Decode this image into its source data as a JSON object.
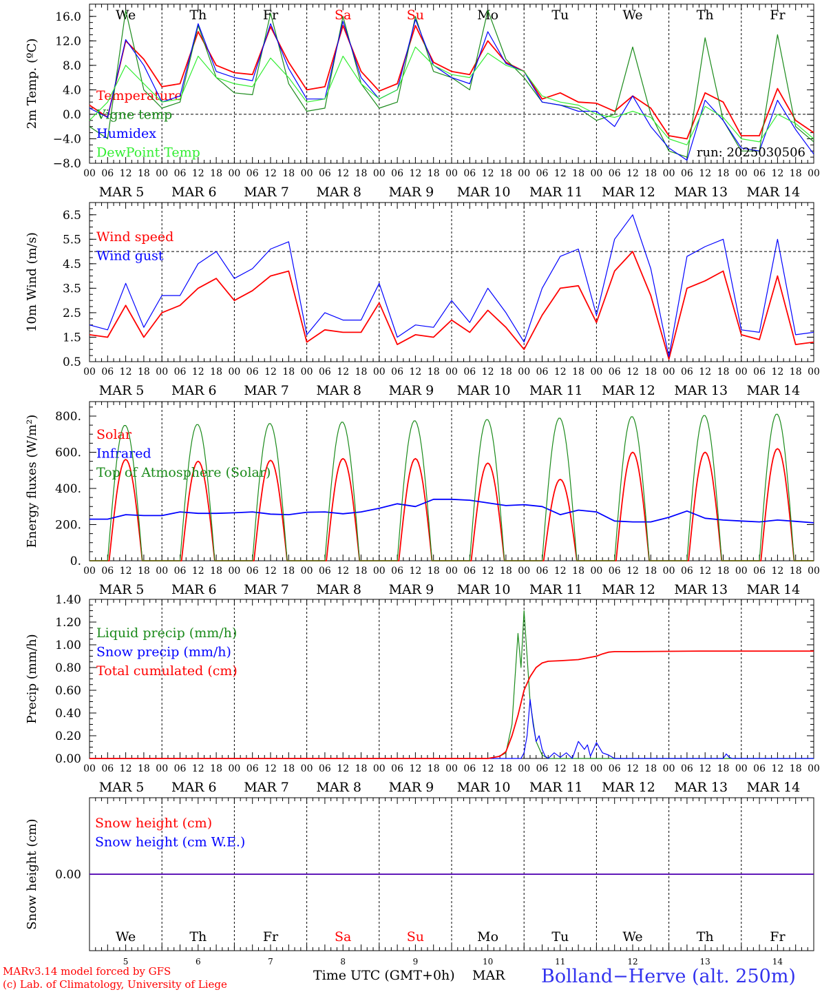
{
  "colors": {
    "red": "#ff0000",
    "green": "#1a8a1a",
    "blue": "#0000ff",
    "lime": "#33ee33",
    "black": "#000000"
  },
  "x_axis": {
    "days": [
      "MAR 5",
      "MAR 6",
      "MAR 7",
      "MAR 8",
      "MAR 9",
      "MAR 10",
      "MAR 11",
      "MAR 12",
      "MAR 13",
      "MAR 14"
    ],
    "weekdays": [
      "We",
      "Th",
      "Fr",
      "Sa",
      "Su",
      "Mo",
      "Tu",
      "We",
      "Th",
      "Fr"
    ],
    "weekend_days": [
      3,
      4
    ],
    "hour_ticks": [
      "00",
      "06",
      "12",
      "18"
    ],
    "final_tick": "00",
    "bottom_day_numbers": [
      "5",
      "6",
      "7",
      "8",
      "9",
      "10",
      "11",
      "12",
      "13",
      "14"
    ],
    "label": "Time UTC (GMT+0h)",
    "month": "MAR"
  },
  "footer": {
    "model": "MARv3.14 model forced by GFS",
    "lab": "(c) Lab. of Climatology, University of Liege",
    "station": "Bolland−Herve (alt. 250m)"
  },
  "chart_data": [
    {
      "type": "line",
      "ylabel": "2m Temp. (ºC)",
      "ylim": [
        -8,
        18
      ],
      "yticks": [
        "−8.0",
        "−4.0",
        "0.0",
        "4.0",
        "8.0",
        "12.0",
        "16.0"
      ],
      "ytick_values": [
        -8,
        -4,
        0,
        4,
        8,
        12,
        16
      ],
      "ref_line": 0,
      "annotation": "run: 2025030506",
      "hours": [
        0,
        6,
        12,
        18,
        24,
        30,
        36,
        42,
        48,
        54,
        60,
        66,
        72,
        78,
        84,
        90,
        96,
        102,
        108,
        114,
        120,
        126,
        132,
        138,
        144,
        150,
        156,
        162,
        168,
        174,
        180,
        186,
        192,
        198,
        204,
        210,
        216,
        222,
        228,
        234,
        240
      ],
      "series": [
        {
          "name": "Temperature",
          "color": "red",
          "values": [
            1.5,
            -0.5,
            12,
            9,
            4.5,
            5,
            13.5,
            8,
            6.8,
            6.5,
            14.3,
            8.5,
            4,
            4.5,
            14.5,
            7,
            3.8,
            5,
            14.5,
            8.5,
            7,
            6.5,
            12,
            8.5,
            7,
            2.5,
            3.5,
            2,
            1.8,
            0.5,
            3,
            1,
            -3.5,
            -4,
            3.5,
            2,
            -3.5,
            -3.5,
            4.2,
            -1,
            -3
          ]
        },
        {
          "name": "Vigne temp",
          "color": "green",
          "values": [
            -2,
            -4,
            17,
            4,
            1,
            2,
            14.5,
            6,
            3.5,
            3.2,
            16.5,
            5,
            0.5,
            1,
            16,
            5,
            1,
            2,
            16,
            7,
            6,
            4,
            17,
            9,
            6,
            2,
            1.5,
            1,
            -1,
            0,
            11,
            0,
            -6,
            -7,
            12.5,
            -1,
            -6,
            -6,
            13,
            -2,
            -4.5
          ]
        },
        {
          "name": "Humidex",
          "color": "blue",
          "values": [
            1,
            -0.5,
            12.2,
            8,
            2,
            3,
            14.8,
            7,
            6,
            5.5,
            14.8,
            7.5,
            2.5,
            2.5,
            15.2,
            6,
            2.5,
            4,
            15.5,
            8,
            6,
            5,
            13.5,
            8.3,
            7,
            2,
            1.5,
            0.5,
            0.5,
            -2,
            3,
            -2,
            -5.5,
            -7.5,
            2.3,
            -1,
            -5.5,
            -6,
            2.3,
            -2.5,
            -6.5
          ]
        },
        {
          "name": "DewPoint Temp",
          "color": "lime",
          "values": [
            -1,
            2,
            8,
            5,
            2,
            2.5,
            9.5,
            6,
            5,
            4.5,
            9.2,
            6,
            2,
            2.5,
            9.5,
            5,
            2.5,
            4,
            11,
            8,
            6.5,
            6,
            10,
            8,
            7,
            3,
            2,
            1.5,
            0,
            -0.5,
            0.5,
            -0.5,
            -4,
            -5,
            1.3,
            -0.5,
            -4,
            -4.5,
            0,
            -1.5,
            -4
          ]
        }
      ]
    },
    {
      "type": "line",
      "ylabel": "10m Wind (m/s)",
      "ylim": [
        0.5,
        7.0
      ],
      "yticks": [
        "0.5",
        "1.5",
        "2.5",
        "3.5",
        "4.5",
        "5.5",
        "6.5"
      ],
      "ytick_values": [
        0.5,
        1.5,
        2.5,
        3.5,
        4.5,
        5.5,
        6.5
      ],
      "ref_line": 5,
      "hours": [
        0,
        6,
        12,
        18,
        24,
        30,
        36,
        42,
        48,
        54,
        60,
        66,
        72,
        78,
        84,
        90,
        96,
        102,
        108,
        114,
        120,
        126,
        132,
        138,
        144,
        150,
        156,
        162,
        168,
        174,
        180,
        186,
        192,
        198,
        204,
        210,
        216,
        222,
        228,
        234,
        240
      ],
      "series": [
        {
          "name": "Wind speed",
          "color": "red",
          "values": [
            1.6,
            1.5,
            2.8,
            1.5,
            2.5,
            2.8,
            3.5,
            3.9,
            3,
            3.4,
            4,
            4.2,
            1.3,
            1.8,
            1.7,
            1.7,
            2.9,
            1.2,
            1.6,
            1.5,
            2.2,
            1.7,
            2.6,
            1.9,
            1,
            2.4,
            3.5,
            3.6,
            2.1,
            4.2,
            5,
            3.2,
            0.6,
            3.5,
            3.8,
            4.2,
            1.6,
            1.4,
            4,
            1.2,
            1.3
          ]
        },
        {
          "name": "Wind gust",
          "color": "blue",
          "values": [
            2,
            1.8,
            3.7,
            1.9,
            3.2,
            3.2,
            4.5,
            5,
            3.9,
            4.3,
            5.1,
            5.4,
            1.6,
            2.5,
            2.2,
            2.2,
            3.7,
            1.5,
            2,
            1.9,
            3,
            2.1,
            3.5,
            2.5,
            1.3,
            3.5,
            4.8,
            5.1,
            2.4,
            5.5,
            6.5,
            4.3,
            0.7,
            4.8,
            5.2,
            5.5,
            1.8,
            1.7,
            5.5,
            1.6,
            1.7
          ]
        }
      ]
    },
    {
      "type": "line",
      "ylabel": "Energy fluxes (W/m²)",
      "ylim": [
        0,
        880
      ],
      "yticks": [
        "0.",
        "200.",
        "400.",
        "600.",
        "800."
      ],
      "ytick_values": [
        0,
        200,
        400,
        600,
        800
      ],
      "series": [
        {
          "name": "Solar",
          "color": "red",
          "peaks": [
            560,
            550,
            555,
            565,
            565,
            540,
            450,
            600,
            600,
            620
          ]
        },
        {
          "name": "Infrared",
          "color": "blue",
          "hours": [
            0,
            6,
            12,
            18,
            24,
            30,
            36,
            42,
            48,
            54,
            60,
            66,
            72,
            78,
            84,
            90,
            96,
            102,
            108,
            114,
            120,
            126,
            132,
            138,
            144,
            150,
            156,
            162,
            168,
            174,
            180,
            186,
            192,
            198,
            204,
            210,
            216,
            222,
            228,
            234,
            240
          ],
          "values": [
            230,
            230,
            255,
            250,
            250,
            270,
            262,
            262,
            265,
            270,
            258,
            255,
            268,
            270,
            260,
            270,
            290,
            315,
            300,
            340,
            340,
            335,
            320,
            305,
            310,
            300,
            255,
            280,
            270,
            220,
            215,
            215,
            240,
            275,
            235,
            225,
            220,
            215,
            225,
            218,
            210
          ]
        },
        {
          "name": "Top of Atmosphere (Solar)",
          "color": "green",
          "peaks": [
            750,
            755,
            760,
            768,
            775,
            782,
            790,
            798,
            805,
            812
          ]
        }
      ]
    },
    {
      "type": "line",
      "ylabel": "Precip (mm/h)",
      "ylim": [
        0,
        1.4
      ],
      "yticks": [
        "0.00",
        "0.20",
        "0.40",
        "0.60",
        "0.80",
        "1.00",
        "1.20",
        "1.40"
      ],
      "ytick_values": [
        0,
        0.2,
        0.4,
        0.6,
        0.8,
        1.0,
        1.2,
        1.4
      ],
      "series": [
        {
          "name": "Liquid precip (mm/h)",
          "color": "green",
          "hours": [
            0,
            132,
            136,
            138,
            140,
            141,
            142,
            143,
            144,
            145,
            146,
            148,
            150,
            152,
            156,
            240
          ],
          "values": [
            0,
            0,
            0.02,
            0.05,
            0.3,
            0.7,
            1.1,
            0.8,
            1.3,
            0.9,
            0.5,
            0.15,
            0.03,
            0,
            0,
            0
          ]
        },
        {
          "name": "Snow precip (mm/h)",
          "color": "blue",
          "hours": [
            0,
            140,
            143,
            144,
            145,
            146,
            147,
            148,
            149,
            150,
            151,
            152,
            154,
            156,
            158,
            160,
            162,
            164,
            165,
            166,
            168,
            170,
            172,
            174,
            176,
            178,
            210,
            211,
            212,
            213,
            240
          ],
          "values": [
            0,
            0,
            0,
            0.05,
            0.2,
            0.52,
            0.3,
            0.15,
            0.2,
            0.08,
            0.02,
            0,
            0.05,
            0.01,
            0.05,
            0,
            0.15,
            0.08,
            0.12,
            0.02,
            0.14,
            0.05,
            0.03,
            0,
            0,
            0,
            0,
            0.04,
            0.01,
            0,
            0
          ]
        },
        {
          "name": "Total cumulated (cm)",
          "color": "red",
          "hours": [
            0,
            132,
            136,
            138,
            140,
            142,
            144,
            146,
            148,
            150,
            152,
            156,
            162,
            168,
            170,
            172,
            174,
            180,
            204,
            240
          ],
          "values": [
            0,
            0,
            0.02,
            0.06,
            0.2,
            0.38,
            0.6,
            0.72,
            0.8,
            0.84,
            0.855,
            0.86,
            0.87,
            0.9,
            0.92,
            0.935,
            0.94,
            0.94,
            0.945,
            0.945
          ]
        }
      ]
    },
    {
      "type": "line",
      "ylabel": "Snow height (cm)",
      "ylim": [
        -1,
        1
      ],
      "yticks": [
        "0.00"
      ],
      "ytick_values": [
        0
      ],
      "series": [
        {
          "name": "Snow height (cm)",
          "color": "red",
          "values": [
            0,
            0
          ]
        },
        {
          "name": "Snow height (cm W.E.)",
          "color": "blue",
          "values": [
            0,
            0
          ]
        }
      ]
    }
  ]
}
